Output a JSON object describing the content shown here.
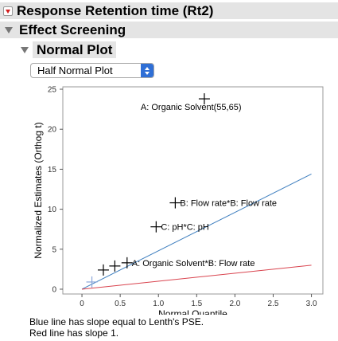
{
  "outline": {
    "response_title": "Response Retention time (Rt2)",
    "effect_screening_title": "Effect Screening",
    "normal_plot_title": "Normal Plot"
  },
  "plot_type_select": {
    "value": "Half Normal Plot"
  },
  "chart_data": {
    "type": "scatter",
    "xlabel": "Normal Quantile",
    "ylabel": "Normalized Estimates (Orthog t)",
    "xlim": [
      -0.25,
      3.15
    ],
    "ylim": [
      -0.6,
      25.3
    ],
    "x_ticks": [
      "0",
      "0.5",
      "1.0",
      "1.5",
      "2.0",
      "2.5",
      "3.0"
    ],
    "y_ticks": [
      "0",
      "5",
      "10",
      "15",
      "20",
      "25"
    ],
    "grid": false,
    "points": [
      {
        "x": 0.13,
        "y": 0.9,
        "label": "",
        "color": "#8aa6d8"
      },
      {
        "x": 0.28,
        "y": 2.4,
        "label": "",
        "color": "#000000"
      },
      {
        "x": 0.43,
        "y": 2.9,
        "label": "",
        "color": "#000000"
      },
      {
        "x": 0.59,
        "y": 3.3,
        "label": "A: Organic Solvent*B: Flow rate",
        "color": "#000000"
      },
      {
        "x": 0.97,
        "y": 7.8,
        "label": "C: pH*C: pH",
        "color": "#000000"
      },
      {
        "x": 1.22,
        "y": 10.8,
        "label": "B: Flow rate*B: Flow rate",
        "color": "#000000"
      },
      {
        "x": 1.6,
        "y": 23.8,
        "label": "A: Organic Solvent(55,65)",
        "color": "#000000"
      }
    ],
    "lines": [
      {
        "name": "Lenth's PSE slope",
        "color": "#3f7fbf",
        "x": [
          0,
          3.0
        ],
        "y": [
          0,
          14.4
        ]
      },
      {
        "name": "Slope 1",
        "color": "#d9434e",
        "x": [
          0,
          3.0
        ],
        "y": [
          0,
          3.0
        ]
      }
    ]
  },
  "footnotes": {
    "blue": "Blue line has slope equal to Lenth's PSE.",
    "red": "Red line has slope 1."
  },
  "colors": {
    "header_bg": "#e4e4e4",
    "select_button": "#2f6fd6"
  }
}
